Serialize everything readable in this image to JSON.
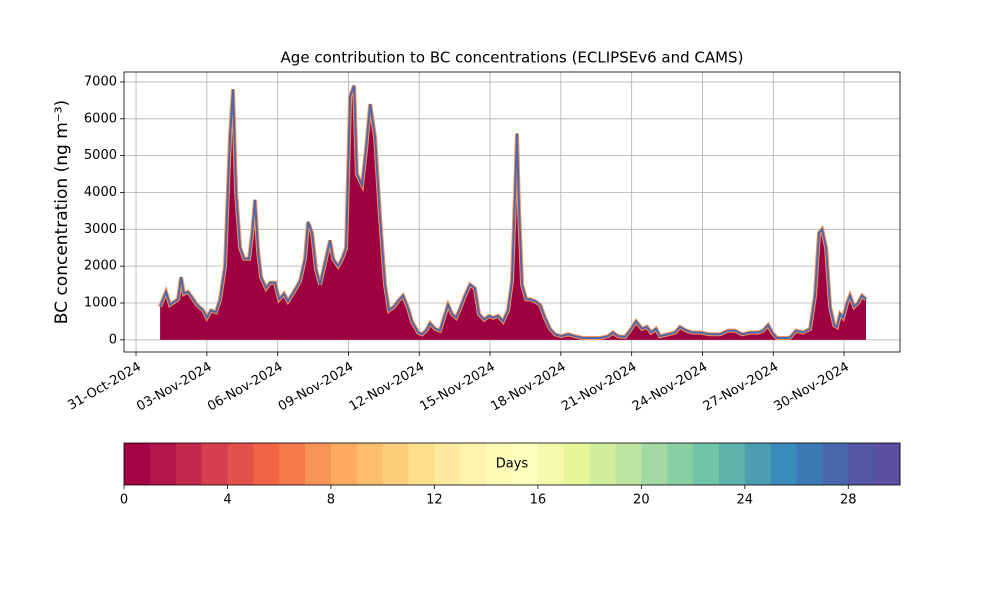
{
  "chart_data": {
    "type": "area",
    "title": "Age contribution to BC concentrations (ECLIPSEv6 and CAMS)",
    "ylabel": "BC concentration (ng m⁻³)",
    "x": [
      1.02,
      1.27,
      1.44,
      1.78,
      1.91,
      2.03,
      2.2,
      2.37,
      2.58,
      2.84,
      3.0,
      3.18,
      3.39,
      3.56,
      3.77,
      3.98,
      4.11,
      4.24,
      4.41,
      4.58,
      4.79,
      4.92,
      5.04,
      5.17,
      5.3,
      5.51,
      5.68,
      5.89,
      6.06,
      6.27,
      6.44,
      6.69,
      6.95,
      7.16,
      7.29,
      7.46,
      7.63,
      7.8,
      8.01,
      8.22,
      8.35,
      8.56,
      8.73,
      8.9,
      9.07,
      9.24,
      9.36,
      9.58,
      9.75,
      9.92,
      10.13,
      10.34,
      10.55,
      10.72,
      10.93,
      11.1,
      11.31,
      11.53,
      11.69,
      11.95,
      12.12,
      12.29,
      12.46,
      12.67,
      12.88,
      13.05,
      13.22,
      13.39,
      13.56,
      13.73,
      13.94,
      14.15,
      14.36,
      14.53,
      14.75,
      14.96,
      15.13,
      15.34,
      15.55,
      15.76,
      15.93,
      16.06,
      16.14,
      16.23,
      16.36,
      16.53,
      16.69,
      16.91,
      17.12,
      17.33,
      17.54,
      17.75,
      18.01,
      18.31,
      18.6,
      18.94,
      19.24,
      19.66,
      20.0,
      20.21,
      20.42,
      20.72,
      20.93,
      21.19,
      21.44,
      21.65,
      21.82,
      22.03,
      22.2,
      22.54,
      22.84,
      23.05,
      23.31,
      23.56,
      23.9,
      24.32,
      24.75,
      25.08,
      25.38,
      25.68,
      26.02,
      26.36,
      26.57,
      26.78,
      26.95,
      27.16,
      27.5,
      27.71,
      27.97,
      28.26,
      28.56,
      28.77,
      28.94,
      29.07,
      29.24,
      29.41,
      29.58,
      29.7,
      29.83,
      29.96,
      30.13,
      30.25,
      30.42,
      30.59,
      30.76,
      30.93
    ],
    "values": [
      900,
      1300,
      950,
      1100,
      1700,
      1250,
      1300,
      1150,
      950,
      800,
      600,
      800,
      750,
      1100,
      2000,
      5500,
      6800,
      4000,
      2500,
      2200,
      2200,
      2900,
      3800,
      2400,
      1700,
      1400,
      1550,
      1550,
      1100,
      1250,
      1050,
      1300,
      1600,
      2200,
      3200,
      2900,
      1900,
      1500,
      2100,
      2700,
      2200,
      2000,
      2200,
      2500,
      6600,
      6900,
      4500,
      4200,
      5200,
      6400,
      5500,
      3300,
      1500,
      800,
      900,
      1050,
      1200,
      850,
      500,
      200,
      150,
      250,
      450,
      300,
      250,
      600,
      950,
      700,
      600,
      850,
      1200,
      1500,
      1400,
      700,
      550,
      650,
      600,
      650,
      500,
      800,
      1600,
      4000,
      5600,
      3500,
      1500,
      1100,
      1100,
      1050,
      950,
      600,
      300,
      150,
      100,
      150,
      100,
      50,
      50,
      50,
      100,
      200,
      100,
      80,
      250,
      500,
      300,
      350,
      200,
      300,
      100,
      150,
      200,
      350,
      250,
      200,
      200,
      150,
      150,
      250,
      250,
      150,
      200,
      200,
      250,
      400,
      200,
      50,
      50,
      60,
      250,
      200,
      300,
      1200,
      2900,
      3000,
      2500,
      900,
      400,
      350,
      700,
      600,
      1000,
      1200,
      900,
      1000,
      1200,
      1100
    ],
    "color": "#9e0142",
    "line_color": "#4a68ae",
    "xlim": [
      -0.51,
      32.37
    ],
    "ylim": [
      -330,
      7270
    ],
    "xticks": [
      {
        "value": 0,
        "label": "31-Oct-2024"
      },
      {
        "value": 3,
        "label": "03-Nov-2024"
      },
      {
        "value": 6,
        "label": "06-Nov-2024"
      },
      {
        "value": 9,
        "label": "09-Nov-2024"
      },
      {
        "value": 12,
        "label": "12-Nov-2024"
      },
      {
        "value": 15,
        "label": "15-Nov-2024"
      },
      {
        "value": 18,
        "label": "18-Nov-2024"
      },
      {
        "value": 21,
        "label": "21-Nov-2024"
      },
      {
        "value": 24,
        "label": "24-Nov-2024"
      },
      {
        "value": 27,
        "label": "27-Nov-2024"
      },
      {
        "value": 30,
        "label": "30-Nov-2024"
      }
    ],
    "yticks": [
      0,
      1000,
      2000,
      3000,
      4000,
      5000,
      6000,
      7000
    ],
    "grid": true,
    "colorbar": {
      "label": "Days",
      "lim": [
        0,
        30
      ],
      "ticks": [
        0,
        4,
        8,
        12,
        16,
        20,
        24,
        28
      ],
      "colors": [
        "#a40543",
        "#b3164a",
        "#c4284e",
        "#d6404e",
        "#e3524a",
        "#ee6445",
        "#f67b4a",
        "#f99355",
        "#fcaa5f",
        "#fdbd6d",
        "#fece7c",
        "#fee08b",
        "#fee99e",
        "#fff3ad",
        "#fffbb9",
        "#fcfebb",
        "#f3faad",
        "#e6f598",
        "#d0ec9c",
        "#bde5a0",
        "#a2d9a4",
        "#88cfa4",
        "#6fc5a5",
        "#5cb1aa",
        "#4b9eb2",
        "#3a8bbb",
        "#3c79b7",
        "#4a68ae",
        "#5455a5",
        "#5e4fa2"
      ]
    }
  }
}
